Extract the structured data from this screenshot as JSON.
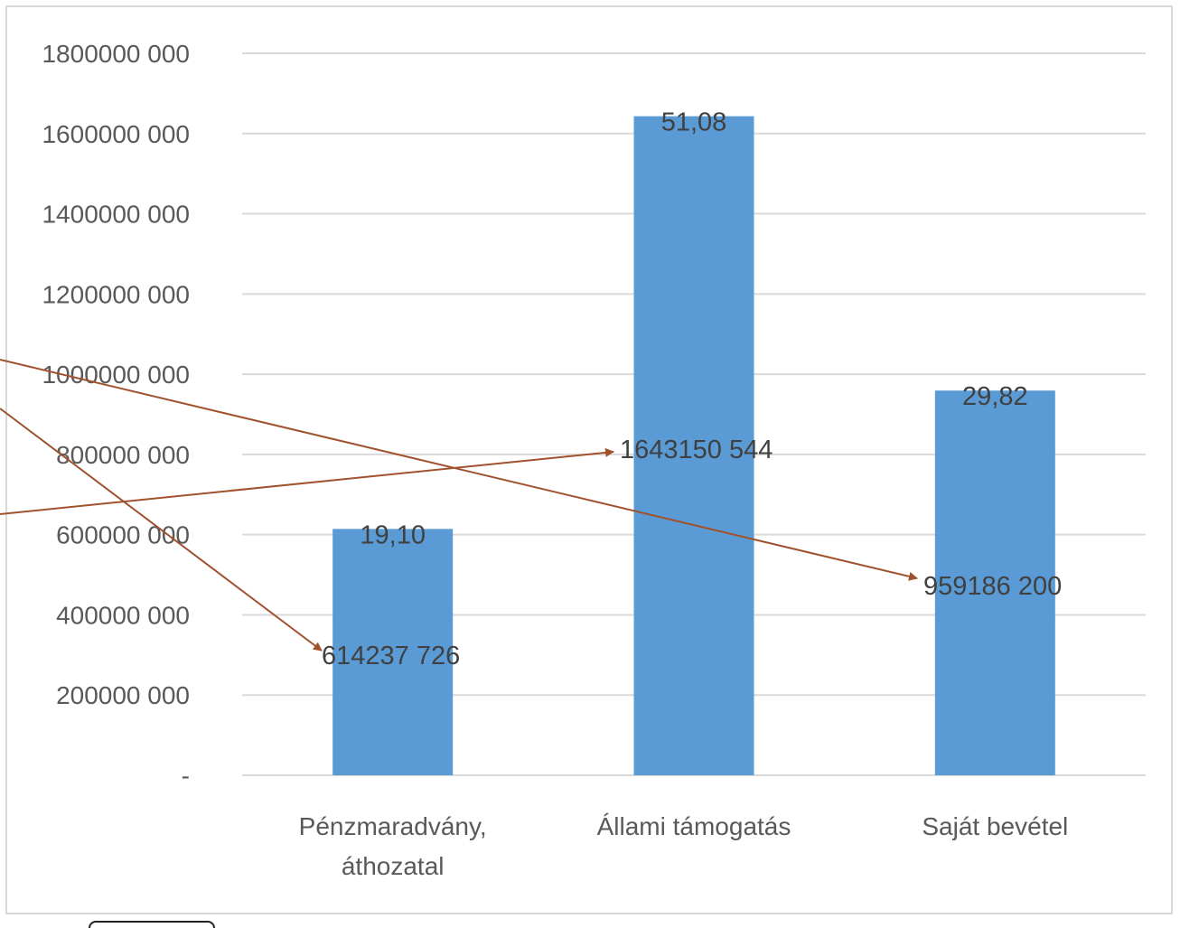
{
  "chart_data": {
    "type": "bar",
    "categories": [
      [
        "Pénzmaradvány,",
        "áthozatal"
      ],
      [
        "Állami támogatás"
      ],
      [
        "Saját bevétel"
      ]
    ],
    "values": [
      614237726,
      1643150544,
      959186200
    ],
    "top_labels": [
      "19,10",
      "51,08",
      "29,82"
    ],
    "value_labels": [
      "614237 726",
      "1643150 544",
      "959186 200"
    ],
    "yticks": [
      {
        "value": 0,
        "label": "-"
      },
      {
        "value": 200000000,
        "label": "200000 000"
      },
      {
        "value": 400000000,
        "label": "400000 000"
      },
      {
        "value": 600000000,
        "label": "600000 000"
      },
      {
        "value": 800000000,
        "label": "800000 000"
      },
      {
        "value": 1000000000,
        "label": "1000000 000"
      },
      {
        "value": 1200000000,
        "label": "1200000 000"
      },
      {
        "value": 1400000000,
        "label": "1400000 000"
      },
      {
        "value": 1600000000,
        "label": "1600000 000"
      },
      {
        "value": 1800000000,
        "label": "1800000 000"
      }
    ],
    "ylim": [
      0,
      1800000000
    ],
    "grid": true,
    "colors": {
      "bar": "#5b9bd5",
      "grid": "#d9d9d9",
      "arrow": "#a0522d"
    }
  }
}
